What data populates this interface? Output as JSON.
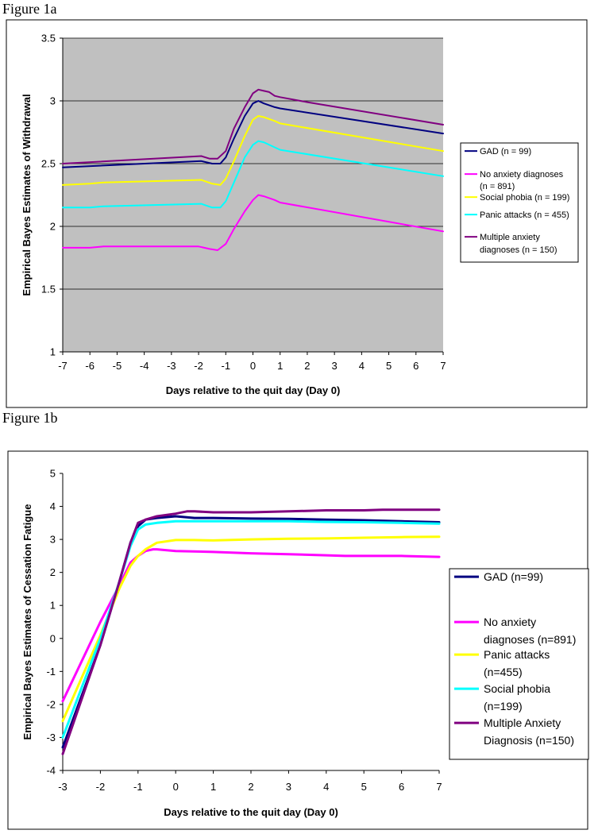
{
  "figure_a_label": "Figure 1a",
  "figure_b_label": "Figure 1b",
  "chart_data": [
    {
      "type": "line",
      "title": "Figure 1a",
      "xlabel": "Days relative to the quit day (Day 0)",
      "ylabel": "Empirical Bayes Estimates of Withdrawal",
      "xlim": [
        -7,
        7
      ],
      "ylim": [
        1,
        3.5
      ],
      "xticks": [
        -7,
        -6,
        -5,
        -4,
        -3,
        -2,
        -1,
        0,
        1,
        2,
        3,
        4,
        5,
        6,
        7
      ],
      "yticks": [
        1,
        1.5,
        2,
        2.5,
        3,
        3.5
      ],
      "ytick_labels": [
        "1",
        "1.5",
        "2",
        "2.5",
        "3",
        "3.5"
      ],
      "grid": "horizontal",
      "legend_position": "right",
      "series": [
        {
          "name": "GAD (n = 99)",
          "legend_lines": [
            "GAD (n = 99)"
          ],
          "color": "#000080",
          "x": [
            -7,
            -1.9,
            -1.5,
            -1.2,
            -1,
            -0.7,
            -0.3,
            0,
            0.2,
            0.4,
            0.8,
            1,
            7
          ],
          "values": [
            2.47,
            2.52,
            2.5,
            2.5,
            2.55,
            2.7,
            2.88,
            2.98,
            3.0,
            2.98,
            2.95,
            2.94,
            2.74
          ]
        },
        {
          "name": "No anxiety diagnoses (n = 891)",
          "legend_lines": [
            "No anxiety diagnoses",
            "(n = 891)"
          ],
          "color": "#ff00ff",
          "x": [
            -7,
            -6,
            -5.5,
            -2,
            -1.6,
            -1.3,
            -1,
            -0.7,
            -0.3,
            0,
            0.2,
            0.4,
            0.8,
            1,
            7
          ],
          "values": [
            1.83,
            1.83,
            1.84,
            1.84,
            1.82,
            1.81,
            1.86,
            1.98,
            2.12,
            2.21,
            2.25,
            2.24,
            2.21,
            2.19,
            1.96
          ]
        },
        {
          "name": "Social phobia (n = 199)",
          "legend_lines": [
            "Social phobia (n = 199)"
          ],
          "color": "#ffff00",
          "x": [
            -7,
            -6,
            -5.5,
            -1.9,
            -1.5,
            -1.2,
            -1,
            -0.7,
            -0.3,
            0,
            0.2,
            0.4,
            0.8,
            1,
            7
          ],
          "values": [
            2.33,
            2.34,
            2.35,
            2.37,
            2.34,
            2.33,
            2.38,
            2.52,
            2.72,
            2.85,
            2.88,
            2.87,
            2.84,
            2.82,
            2.6
          ]
        },
        {
          "name": "Panic attacks (n = 455)",
          "legend_lines": [
            "Panic attacks (n = 455)"
          ],
          "color": "#00ffff",
          "x": [
            -7,
            -6,
            -5.5,
            -1.9,
            -1.5,
            -1.2,
            -1,
            -0.7,
            -0.3,
            0,
            0.2,
            0.4,
            0.8,
            1,
            7
          ],
          "values": [
            2.15,
            2.15,
            2.16,
            2.18,
            2.15,
            2.15,
            2.2,
            2.35,
            2.55,
            2.65,
            2.68,
            2.67,
            2.63,
            2.61,
            2.4
          ]
        },
        {
          "name": "Multiple anxiety diagnoses (n = 150)",
          "legend_lines": [
            "Multiple anxiety",
            "diagnoses (n = 150)"
          ],
          "color": "#800080",
          "x": [
            -7,
            -1.9,
            -1.6,
            -1.3,
            -1,
            -0.7,
            -0.3,
            0,
            0.2,
            0.4,
            0.6,
            0.8,
            1,
            2,
            7
          ],
          "values": [
            2.5,
            2.56,
            2.54,
            2.54,
            2.6,
            2.78,
            2.95,
            3.06,
            3.09,
            3.08,
            3.07,
            3.04,
            3.03,
            2.99,
            2.81
          ]
        }
      ]
    },
    {
      "type": "line",
      "title": "Figure 1b",
      "xlabel": "Days relative to the quit day (Day 0)",
      "ylabel": "Empirical Bayes Estimates of Cessation Fatigue",
      "xlim": [
        -3,
        7
      ],
      "ylim": [
        -4,
        5
      ],
      "xticks": [
        -3,
        -2,
        -1,
        0,
        1,
        2,
        3,
        4,
        5,
        6,
        7
      ],
      "yticks": [
        -4,
        -3,
        -2,
        -1,
        0,
        1,
        2,
        3,
        4,
        5
      ],
      "ytick_labels": [
        "-4",
        "-3",
        "-2",
        "-1",
        "0",
        "1",
        "2",
        "3",
        "4",
        "5"
      ],
      "grid": "none",
      "legend_position": "right",
      "series": [
        {
          "name": "GAD (n=99)",
          "legend_lines": [
            "GAD (n=99)"
          ],
          "color": "#000080",
          "x": [
            -3,
            -2,
            -1.5,
            -1.2,
            -1,
            -0.8,
            -0.5,
            0,
            0.5,
            1,
            2,
            3,
            4,
            5,
            6,
            7
          ],
          "values": [
            -3.3,
            -0.2,
            1.7,
            2.9,
            3.4,
            3.6,
            3.65,
            3.7,
            3.65,
            3.65,
            3.63,
            3.62,
            3.6,
            3.58,
            3.55,
            3.52
          ]
        },
        {
          "name": "No anxiety diagnoses (n=891)",
          "legend_lines": [
            "No anxiety",
            "diagnoses (n=891)"
          ],
          "color": "#ff00ff",
          "x": [
            -3,
            -2,
            -1.5,
            -1.2,
            -1,
            -0.8,
            -0.6,
            -0.5,
            0,
            1,
            2,
            3,
            4,
            4.5,
            5,
            6,
            7
          ],
          "values": [
            -1.9,
            0.5,
            1.6,
            2.3,
            2.5,
            2.65,
            2.7,
            2.7,
            2.65,
            2.62,
            2.58,
            2.55,
            2.52,
            2.5,
            2.5,
            2.5,
            2.47
          ]
        },
        {
          "name": "Panic attacks (n=455)",
          "legend_lines": [
            "Panic attacks",
            "(n=455)"
          ],
          "color": "#ffff00",
          "x": [
            -3,
            -2,
            -1.5,
            -1.2,
            -1,
            -0.8,
            -0.5,
            0,
            0.5,
            1,
            2,
            3,
            4,
            5,
            6,
            7
          ],
          "values": [
            -2.5,
            0.1,
            1.5,
            2.2,
            2.5,
            2.7,
            2.9,
            2.98,
            2.98,
            2.97,
            3.0,
            3.02,
            3.03,
            3.05,
            3.07,
            3.08
          ]
        },
        {
          "name": "Social phobia (n=199)",
          "legend_lines": [
            "Social phobia",
            "(n=199)"
          ],
          "color": "#00ffff",
          "x": [
            -3,
            -2,
            -1.5,
            -1.2,
            -1,
            -0.8,
            -0.5,
            0,
            0.5,
            1,
            2,
            3,
            4,
            5,
            6,
            7
          ],
          "values": [
            -3.0,
            0.0,
            1.7,
            2.8,
            3.3,
            3.45,
            3.5,
            3.55,
            3.55,
            3.55,
            3.55,
            3.55,
            3.53,
            3.52,
            3.5,
            3.48
          ]
        },
        {
          "name": "Multiple Anxiety Diagnosis (n=150)",
          "legend_lines": [
            "Multiple Anxiety",
            "Diagnosis (n=150)"
          ],
          "color": "#800080",
          "x": [
            -3,
            -2,
            -1.5,
            -1.2,
            -1,
            -0.8,
            -0.5,
            0,
            0.3,
            0.5,
            1,
            2,
            3,
            4,
            5,
            5.5,
            6,
            7
          ],
          "values": [
            -3.5,
            -0.2,
            1.7,
            2.9,
            3.5,
            3.6,
            3.7,
            3.78,
            3.85,
            3.85,
            3.82,
            3.82,
            3.85,
            3.88,
            3.88,
            3.9,
            3.9,
            3.9
          ]
        }
      ]
    }
  ]
}
